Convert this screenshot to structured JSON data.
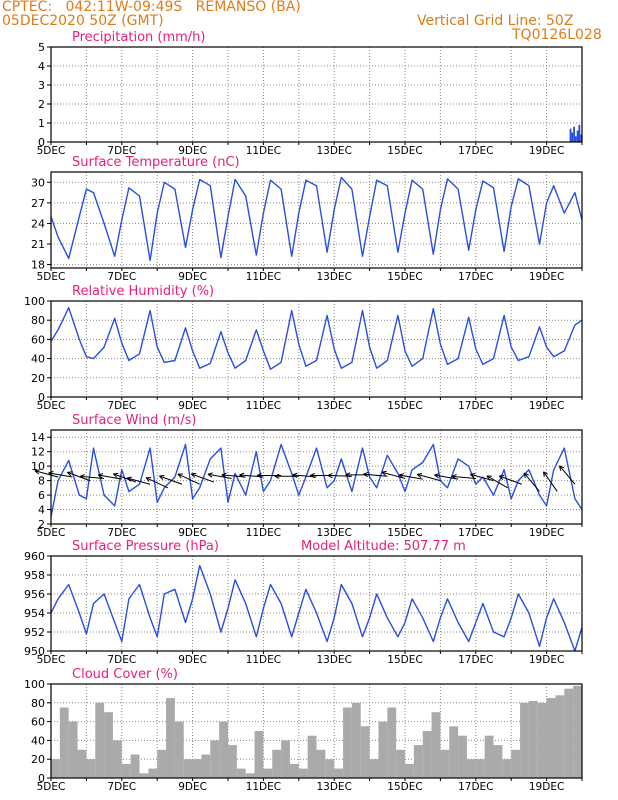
{
  "header": {
    "line1": "CPTEC:   042:11W-09:49S   REMANSO (BA)",
    "line2": "05DEC2020 50Z (GMT)",
    "grid_note": "Vertical Grid Line: 50Z",
    "code": "TQ0126L028"
  },
  "colors": {
    "header": "#e07b1a",
    "title": "#e8207a",
    "line": "#2a4fe0",
    "axis": "#000000",
    "cloud": "#aaaaaa"
  },
  "x_ticks": [
    "5DEC",
    "7DEC",
    "9DEC",
    "11DEC",
    "13DEC",
    "15DEC",
    "17DEC",
    "19DEC"
  ],
  "x_range_days": [
    5,
    20
  ],
  "chart_data": [
    {
      "id": "precip",
      "type": "bar",
      "title": "Precipitation (mm/h)",
      "ylim": [
        0,
        5
      ],
      "yticks": [
        "0",
        "1",
        "2",
        "3",
        "4",
        "5"
      ],
      "x": [
        5.0,
        17.0,
        19.65,
        19.7,
        19.75,
        19.8,
        19.85,
        19.9,
        19.95
      ],
      "values": [
        0.02,
        0.03,
        0.7,
        0.5,
        0.8,
        0.3,
        0.6,
        0.9,
        0.4
      ]
    },
    {
      "id": "temp",
      "type": "line",
      "title": "Surface Temperature (nC)",
      "ylim": [
        17.5,
        31.5
      ],
      "yticks": [
        "18",
        "21",
        "24",
        "27",
        "30"
      ],
      "x": [
        5.0,
        5.2,
        5.5,
        5.8,
        6.0,
        6.2,
        6.5,
        6.8,
        7.0,
        7.2,
        7.5,
        7.8,
        8.0,
        8.2,
        8.5,
        8.8,
        9.0,
        9.2,
        9.5,
        9.8,
        10.0,
        10.2,
        10.5,
        10.8,
        11.0,
        11.2,
        11.5,
        11.8,
        12.0,
        12.2,
        12.5,
        12.8,
        13.0,
        13.2,
        13.5,
        13.8,
        14.0,
        14.2,
        14.5,
        14.8,
        15.0,
        15.2,
        15.5,
        15.8,
        16.0,
        16.2,
        16.5,
        16.8,
        17.0,
        17.2,
        17.5,
        17.8,
        18.0,
        18.2,
        18.5,
        18.8,
        19.0,
        19.2,
        19.5,
        19.8,
        20.0
      ],
      "values": [
        25.0,
        22.0,
        18.9,
        25.0,
        29.0,
        28.5,
        24.0,
        19.2,
        24.5,
        29.2,
        28.0,
        18.6,
        25.5,
        30.0,
        29.0,
        20.5,
        26.0,
        30.4,
        29.5,
        19.0,
        25.0,
        30.4,
        28.0,
        19.4,
        25.5,
        30.3,
        29.0,
        19.2,
        25.5,
        30.3,
        29.5,
        19.8,
        26.0,
        30.7,
        29.0,
        19.2,
        25.0,
        30.3,
        29.5,
        19.8,
        25.5,
        30.3,
        29.0,
        19.5,
        26.0,
        30.5,
        29.0,
        20.1,
        26.0,
        30.2,
        29.2,
        19.9,
        26.5,
        30.5,
        29.5,
        21.0,
        27.0,
        29.5,
        25.5,
        28.5,
        24.5
      ]
    },
    {
      "id": "rh",
      "type": "line",
      "title": "Relative Humidity (%)",
      "ylim": [
        0,
        100
      ],
      "yticks": [
        "0",
        "20",
        "40",
        "60",
        "80",
        "100"
      ],
      "x": [
        5.0,
        5.2,
        5.5,
        5.8,
        6.0,
        6.2,
        6.5,
        6.8,
        7.0,
        7.2,
        7.5,
        7.8,
        8.0,
        8.2,
        8.5,
        8.8,
        9.0,
        9.2,
        9.5,
        9.8,
        10.0,
        10.2,
        10.5,
        10.8,
        11.0,
        11.2,
        11.5,
        11.8,
        12.0,
        12.2,
        12.5,
        12.8,
        13.0,
        13.2,
        13.5,
        13.8,
        14.0,
        14.2,
        14.5,
        14.8,
        15.0,
        15.2,
        15.5,
        15.8,
        16.0,
        16.2,
        16.5,
        16.8,
        17.0,
        17.2,
        17.5,
        17.8,
        18.0,
        18.2,
        18.5,
        18.8,
        19.0,
        19.2,
        19.5,
        19.8,
        20.0
      ],
      "values": [
        58,
        70,
        93,
        60,
        42,
        40,
        52,
        82,
        56,
        38,
        45,
        90,
        52,
        36,
        38,
        72,
        48,
        30,
        35,
        68,
        46,
        30,
        38,
        70,
        48,
        29,
        36,
        90,
        55,
        32,
        38,
        85,
        50,
        30,
        36,
        90,
        52,
        30,
        38,
        85,
        48,
        32,
        40,
        92,
        55,
        34,
        40,
        83,
        50,
        34,
        40,
        85,
        52,
        38,
        42,
        73,
        52,
        42,
        48,
        75,
        80
      ]
    },
    {
      "id": "wind",
      "type": "line",
      "title": "Surface Wind (m/s)",
      "ylim": [
        2,
        15
      ],
      "yticks": [
        "2",
        "4",
        "6",
        "8",
        "10",
        "12",
        "14"
      ],
      "x": [
        5.0,
        5.2,
        5.5,
        5.8,
        6.0,
        6.2,
        6.5,
        6.8,
        7.0,
        7.2,
        7.5,
        7.8,
        8.0,
        8.2,
        8.5,
        8.8,
        9.0,
        9.2,
        9.5,
        9.8,
        10.0,
        10.2,
        10.5,
        10.8,
        11.0,
        11.2,
        11.5,
        11.8,
        12.0,
        12.2,
        12.5,
        12.8,
        13.0,
        13.2,
        13.5,
        13.8,
        14.0,
        14.2,
        14.5,
        14.8,
        15.0,
        15.2,
        15.5,
        15.8,
        16.0,
        16.2,
        16.5,
        16.8,
        17.0,
        17.2,
        17.5,
        17.8,
        18.0,
        18.2,
        18.5,
        18.8,
        19.0,
        19.2,
        19.5,
        19.8,
        20.0
      ],
      "values": [
        3.0,
        8.0,
        10.8,
        6.0,
        5.5,
        12.5,
        6.0,
        4.5,
        9.5,
        6.5,
        7.5,
        12.5,
        5.0,
        7.0,
        8.5,
        13.0,
        5.5,
        7.0,
        11.0,
        12.5,
        5.0,
        9.0,
        6.0,
        12.0,
        6.5,
        8.0,
        13.0,
        9.0,
        6.0,
        8.5,
        12.5,
        7.0,
        8.0,
        11.0,
        6.5,
        12.5,
        8.5,
        7.0,
        11.5,
        9.0,
        6.5,
        9.5,
        10.5,
        13.0,
        8.0,
        7.0,
        11.0,
        10.0,
        7.5,
        8.5,
        6.0,
        9.5,
        5.5,
        8.0,
        9.5,
        6.0,
        4.5,
        9.5,
        12.5,
        5.5,
        4.0
      ],
      "vectors": [
        {
          "day": 5.2,
          "speed": 8.5,
          "dir_deg": 195
        },
        {
          "day": 5.6,
          "speed": 8.5,
          "dir_deg": 190
        },
        {
          "day": 6.1,
          "speed": 8.0,
          "dir_deg": 200
        },
        {
          "day": 6.5,
          "speed": 8.3,
          "dir_deg": 185
        },
        {
          "day": 7.0,
          "speed": 8.2,
          "dir_deg": 190
        },
        {
          "day": 7.4,
          "speed": 7.8,
          "dir_deg": 200
        },
        {
          "day": 7.8,
          "speed": 7.5,
          "dir_deg": 195
        },
        {
          "day": 8.3,
          "speed": 7.0,
          "dir_deg": 205
        },
        {
          "day": 8.7,
          "speed": 7.5,
          "dir_deg": 200
        },
        {
          "day": 9.2,
          "speed": 7.5,
          "dir_deg": 205
        },
        {
          "day": 9.6,
          "speed": 7.8,
          "dir_deg": 200
        },
        {
          "day": 10.1,
          "speed": 8.3,
          "dir_deg": 190
        },
        {
          "day": 10.5,
          "speed": 8.5,
          "dir_deg": 185
        },
        {
          "day": 11.0,
          "speed": 8.5,
          "dir_deg": 185
        },
        {
          "day": 11.5,
          "speed": 8.7,
          "dir_deg": 180
        },
        {
          "day": 12.0,
          "speed": 8.6,
          "dir_deg": 180
        },
        {
          "day": 12.5,
          "speed": 8.5,
          "dir_deg": 185
        },
        {
          "day": 13.0,
          "speed": 8.7,
          "dir_deg": 180
        },
        {
          "day": 13.5,
          "speed": 8.6,
          "dir_deg": 182
        },
        {
          "day": 14.0,
          "speed": 8.8,
          "dir_deg": 180
        },
        {
          "day": 14.5,
          "speed": 8.6,
          "dir_deg": 185
        },
        {
          "day": 15.0,
          "speed": 8.3,
          "dir_deg": 195
        },
        {
          "day": 15.5,
          "speed": 8.2,
          "dir_deg": 190
        },
        {
          "day": 16.0,
          "speed": 8.0,
          "dir_deg": 195
        },
        {
          "day": 16.5,
          "speed": 8.2,
          "dir_deg": 190
        },
        {
          "day": 17.0,
          "speed": 8.3,
          "dir_deg": 185
        },
        {
          "day": 17.5,
          "speed": 8.0,
          "dir_deg": 195
        },
        {
          "day": 17.9,
          "speed": 7.0,
          "dir_deg": 210
        },
        {
          "day": 18.3,
          "speed": 7.5,
          "dir_deg": 200
        },
        {
          "day": 18.8,
          "speed": 6.5,
          "dir_deg": 230
        },
        {
          "day": 19.3,
          "speed": 6.5,
          "dir_deg": 235
        },
        {
          "day": 19.8,
          "speed": 7.5,
          "dir_deg": 230
        }
      ]
    },
    {
      "id": "pres",
      "type": "line",
      "title": "Surface Pressure (hPa)",
      "subtitle": "Model Altitude: 507.77 m",
      "ylim": [
        950,
        960
      ],
      "yticks": [
        "950",
        "952",
        "954",
        "956",
        "958",
        "960"
      ],
      "x": [
        5.0,
        5.2,
        5.5,
        5.8,
        6.0,
        6.2,
        6.5,
        6.8,
        7.0,
        7.2,
        7.5,
        7.8,
        8.0,
        8.2,
        8.5,
        8.8,
        9.0,
        9.2,
        9.5,
        9.8,
        10.0,
        10.2,
        10.5,
        10.8,
        11.0,
        11.2,
        11.5,
        11.8,
        12.0,
        12.2,
        12.5,
        12.8,
        13.0,
        13.2,
        13.5,
        13.8,
        14.0,
        14.2,
        14.5,
        14.8,
        15.0,
        15.2,
        15.5,
        15.8,
        16.0,
        16.2,
        16.5,
        16.8,
        17.0,
        17.2,
        17.5,
        17.8,
        18.0,
        18.2,
        18.5,
        18.8,
        19.0,
        19.2,
        19.5,
        19.8,
        20.0
      ],
      "values": [
        954.0,
        955.5,
        957.0,
        954.0,
        951.8,
        955.0,
        956.0,
        953.0,
        951.0,
        955.5,
        957.0,
        953.5,
        951.5,
        956.0,
        956.5,
        953.0,
        955.5,
        959.0,
        956.0,
        952.0,
        954.5,
        957.5,
        955.0,
        951.5,
        954.5,
        957.0,
        955.0,
        951.5,
        954.0,
        956.5,
        954.0,
        951.0,
        953.5,
        957.0,
        955.0,
        951.5,
        953.5,
        956.0,
        953.5,
        951.5,
        953.0,
        955.5,
        953.5,
        951.0,
        953.5,
        955.5,
        953.0,
        951.0,
        953.0,
        955.0,
        952.0,
        951.5,
        953.5,
        956.0,
        954.0,
        950.5,
        953.5,
        955.5,
        953.0,
        950.0,
        952.5
      ]
    },
    {
      "id": "cloud",
      "type": "bar",
      "title": "Cloud Cover (%)",
      "ylim": [
        0,
        100
      ],
      "yticks": [
        "0",
        "20",
        "40",
        "60",
        "80",
        "100"
      ],
      "x": [
        5.0,
        5.25,
        5.5,
        5.75,
        6.0,
        6.25,
        6.5,
        6.75,
        7.0,
        7.25,
        7.5,
        7.75,
        8.0,
        8.25,
        8.5,
        8.75,
        9.0,
        9.25,
        9.5,
        9.75,
        10.0,
        10.25,
        10.5,
        10.75,
        11.0,
        11.25,
        11.5,
        11.75,
        12.0,
        12.25,
        12.5,
        12.75,
        13.0,
        13.25,
        13.5,
        13.75,
        14.0,
        14.25,
        14.5,
        14.75,
        15.0,
        15.25,
        15.5,
        15.75,
        16.0,
        16.25,
        16.5,
        16.75,
        17.0,
        17.25,
        17.5,
        17.75,
        18.0,
        18.25,
        18.5,
        18.75,
        19.0,
        19.25,
        19.5,
        19.75
      ],
      "values": [
        20,
        75,
        60,
        30,
        20,
        80,
        70,
        40,
        15,
        25,
        5,
        10,
        30,
        85,
        60,
        20,
        20,
        25,
        40,
        60,
        35,
        10,
        5,
        50,
        10,
        30,
        40,
        15,
        10,
        45,
        30,
        20,
        10,
        75,
        80,
        55,
        20,
        60,
        75,
        30,
        15,
        35,
        50,
        70,
        30,
        55,
        45,
        20,
        20,
        45,
        35,
        20,
        30,
        80,
        82,
        80,
        85,
        88,
        95,
        98
      ]
    }
  ]
}
